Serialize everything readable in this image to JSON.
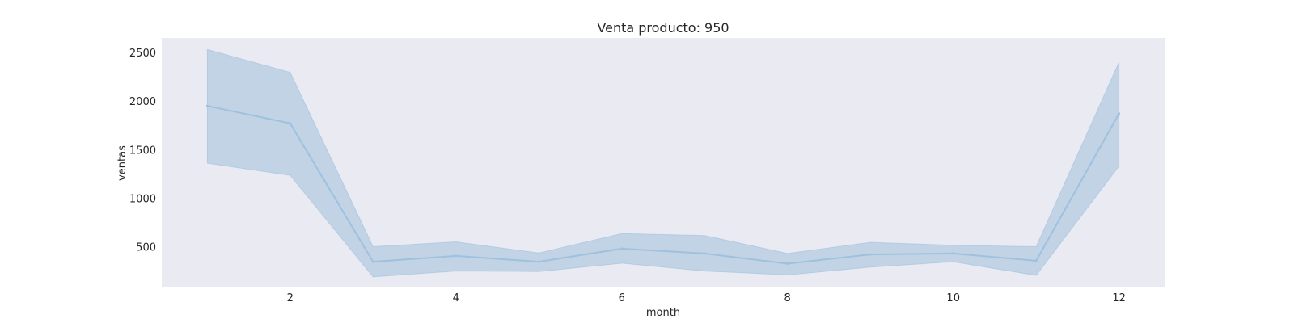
{
  "chart_data": {
    "type": "line",
    "title": "Venta producto: 950",
    "xlabel": "month",
    "ylabel": "ventas",
    "xlim": [
      0.45,
      12.55
    ],
    "ylim": [
      80,
      2650
    ],
    "x_ticks": [
      2,
      4,
      6,
      8,
      10,
      12
    ],
    "y_ticks": [
      500,
      1000,
      1500,
      2000,
      2500
    ],
    "grid": false,
    "x": [
      1,
      2,
      3,
      4,
      5,
      6,
      7,
      8,
      9,
      10,
      11,
      12
    ],
    "series": [
      {
        "values": [
          1950,
          1770,
          345,
          405,
          345,
          480,
          430,
          325,
          420,
          430,
          355,
          1870
        ],
        "ci_upper": [
          2530,
          2295,
          500,
          550,
          435,
          635,
          615,
          430,
          545,
          515,
          500,
          2400
        ],
        "ci_lower": [
          1360,
          1235,
          190,
          250,
          245,
          330,
          250,
          210,
          290,
          345,
          205,
          1330
        ]
      }
    ],
    "colors": {
      "line": "#9ec1df",
      "band": "#c2d3e5",
      "plot_bg": "#eaeaf2",
      "text": "#262626"
    }
  }
}
